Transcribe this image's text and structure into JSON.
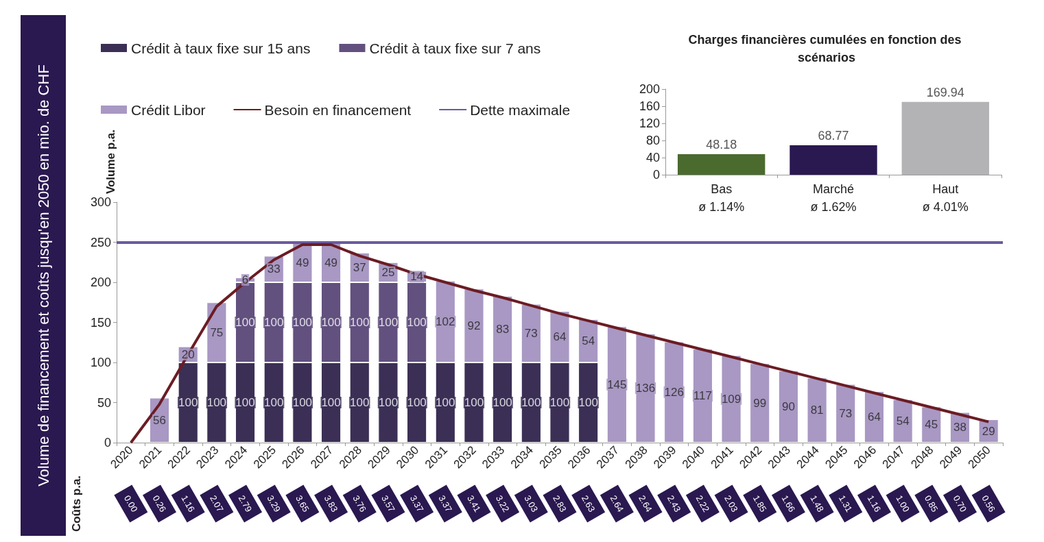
{
  "chart_data": [
    {
      "type": "bar",
      "title": "Volume de financement et coûts jusqu'en 2050 en mio. de CHF",
      "ylabel": "Volume p.a.",
      "stacked": true,
      "legend": "top left",
      "grid": false,
      "ylim": [
        0,
        300
      ],
      "yticks": [
        0,
        50,
        100,
        150,
        200,
        250,
        300
      ],
      "categories": [
        "2020",
        "2021",
        "2022",
        "2023",
        "2024",
        "2025",
        "2026",
        "2027",
        "2028",
        "2029",
        "2030",
        "2031",
        "2032",
        "2033",
        "2034",
        "2035",
        "2036",
        "2037",
        "2038",
        "2039",
        "2040",
        "2041",
        "2042",
        "2043",
        "2044",
        "2045",
        "2046",
        "2047",
        "2048",
        "2049",
        "2050"
      ],
      "series": [
        {
          "name": "Crédit à taux fixe sur 15 ans",
          "color": "#3b2f55",
          "values": [
            null,
            null,
            100,
            100,
            100,
            100,
            100,
            100,
            100,
            100,
            100,
            100,
            100,
            100,
            100,
            100,
            100,
            null,
            null,
            null,
            null,
            null,
            null,
            null,
            null,
            null,
            null,
            null,
            null,
            null,
            null
          ],
          "value_labels": [
            null,
            null,
            "100",
            "100",
            "100",
            "100",
            "100",
            "100",
            "100",
            "100",
            "100",
            "100",
            "100",
            "100",
            "100",
            "100",
            "100",
            null,
            null,
            null,
            null,
            null,
            null,
            null,
            null,
            null,
            null,
            null,
            null,
            null,
            null
          ]
        },
        {
          "name": "Crédit à taux fixe sur 7 ans",
          "color": "#62507f",
          "values": [
            null,
            null,
            null,
            null,
            100,
            100,
            100,
            100,
            100,
            100,
            100,
            null,
            null,
            null,
            null,
            null,
            null,
            null,
            null,
            null,
            null,
            null,
            null,
            null,
            null,
            null,
            null,
            null,
            null,
            null,
            null
          ],
          "value_labels": [
            null,
            null,
            null,
            null,
            "100",
            "100",
            "100",
            "100",
            "100",
            "100",
            "100",
            null,
            null,
            null,
            null,
            null,
            null,
            null,
            null,
            null,
            null,
            null,
            null,
            null,
            null,
            null,
            null,
            null,
            null,
            null,
            null
          ]
        },
        {
          "name": "Crédit Libor",
          "color": "#a898c3",
          "values": [
            null,
            56,
            20,
            75,
            6,
            33,
            49,
            49,
            37,
            25,
            14,
            102,
            92,
            83,
            73,
            64,
            54,
            145,
            136,
            126,
            117,
            109,
            99,
            90,
            81,
            73,
            64,
            54,
            45,
            38,
            29
          ],
          "value_labels": [
            null,
            "56",
            "20",
            "75",
            "6",
            "33",
            "49",
            "49",
            "37",
            "25",
            "14",
            "102",
            "92",
            "83",
            "73",
            "64",
            "54",
            "145",
            "136",
            "126",
            "117",
            "109",
            "99",
            "90",
            "81",
            "73",
            "64",
            "54",
            "45",
            "38",
            "29"
          ]
        },
        {
          "name": "Besoin en financement",
          "type": "line",
          "color": "#6b1c24",
          "marker": "none",
          "values": [
            0,
            48,
            110,
            170,
            200,
            228,
            247,
            247,
            233,
            222,
            210,
            200,
            190,
            181,
            171,
            161,
            152,
            143,
            134,
            125,
            116,
            107,
            98,
            89,
            80,
            71,
            62,
            53,
            44,
            35,
            26
          ]
        }
      ],
      "ref_lines": [
        {
          "axis": "y",
          "value": 250,
          "label": "Dette maximale",
          "color": "#6a5a9e"
        }
      ]
    },
    {
      "type": "bar",
      "title": "Charges financières cumulées en fonction des scénarios",
      "categories": [
        "Bas\nø 1.14%",
        "Marché\nø 1.62%",
        "Haut\nø 4.01%"
      ],
      "values": [
        48.18,
        68.77,
        169.94
      ],
      "colors": [
        "#4a6a2e",
        "#2a1850",
        "#b3b3b5"
      ],
      "ylim": [
        0,
        200
      ],
      "yticks": [
        0,
        40,
        80,
        120,
        160,
        200
      ],
      "grid": false,
      "legend": false,
      "data_labels": true
    },
    {
      "type": "other",
      "ylabel": "Coûts p.a.",
      "color": "#2a1850",
      "categories": [
        null,
        null,
        null,
        null,
        null,
        null,
        null,
        null,
        null,
        null,
        null,
        null,
        null,
        null,
        null,
        null,
        null,
        null,
        null,
        null,
        null,
        null,
        null,
        null,
        null,
        null,
        null,
        null,
        null,
        null,
        null
      ],
      "values": [
        0.0,
        0.26,
        1.16,
        2.07,
        2.79,
        3.29,
        3.65,
        3.83,
        3.76,
        3.57,
        3.37,
        3.37,
        3.41,
        3.22,
        3.03,
        2.83,
        2.63,
        2.64,
        2.64,
        2.43,
        2.22,
        2.03,
        1.85,
        1.66,
        1.48,
        1.31,
        1.16,
        1.0,
        0.85,
        0.7,
        0.56
      ],
      "value_labels": [
        "0.00",
        "0.26",
        "1.16",
        "2.07",
        "2.79",
        "3.29",
        "3.65",
        "3.83",
        "3.76",
        "3.57",
        "3.37",
        "3.37",
        "3.41",
        "3.22",
        "3.03",
        "2.83",
        "2.63",
        "2.64",
        "2.64",
        "2.43",
        "2.22",
        "2.03",
        "1.85",
        "1.66",
        "1.48",
        "1.31",
        "1.16",
        "1.00",
        "0.85",
        "0.70",
        "0.56"
      ]
    }
  ]
}
